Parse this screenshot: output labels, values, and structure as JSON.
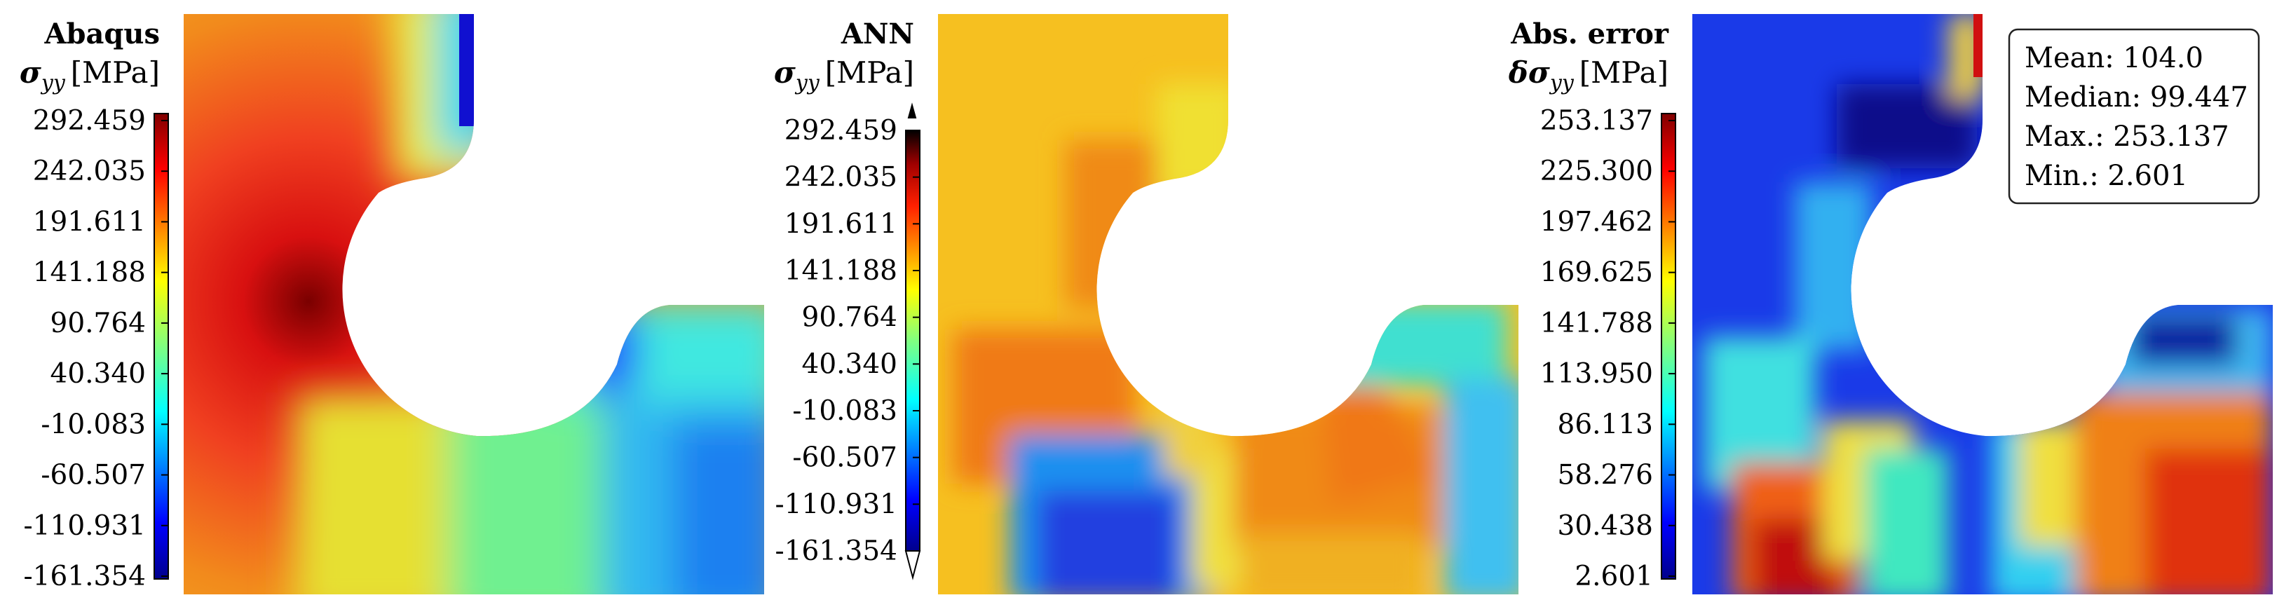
{
  "panels": [
    {
      "title": "Abaqus",
      "quantity": {
        "symbol": "σ",
        "subscript": "yy",
        "unit": "[MPa]"
      },
      "colorbar_ticks": [
        "292.459",
        "242.035",
        "191.611",
        "141.188",
        "90.764",
        "40.340",
        "-10.083",
        "-60.507",
        "-110.931",
        "-161.354"
      ]
    },
    {
      "title": "ANN",
      "quantity": {
        "symbol": "σ",
        "subscript": "yy",
        "unit": "[MPa]"
      },
      "colorbar_ticks": [
        "292.459",
        "242.035",
        "191.611",
        "141.188",
        "90.764",
        "40.340",
        "-10.083",
        "-60.507",
        "-110.931",
        "-161.354"
      ]
    },
    {
      "title": "Abs. error",
      "quantity": {
        "symbol": "δσ",
        "subscript": "yy",
        "unit": "[MPa]"
      },
      "colorbar_ticks": [
        "253.137",
        "225.300",
        "197.462",
        "169.625",
        "141.788",
        "113.950",
        "86.113",
        "58.276",
        "30.438",
        "2.601"
      ],
      "stats": {
        "mean": "Mean: 104.0",
        "median": "Median: 99.447",
        "max": "Max.: 253.137",
        "min": "Min.: 2.601"
      }
    }
  ],
  "colormap": "jet",
  "colors": {
    "low": "#00008b",
    "mid": "#7fff7f",
    "high": "#8b0000"
  }
}
